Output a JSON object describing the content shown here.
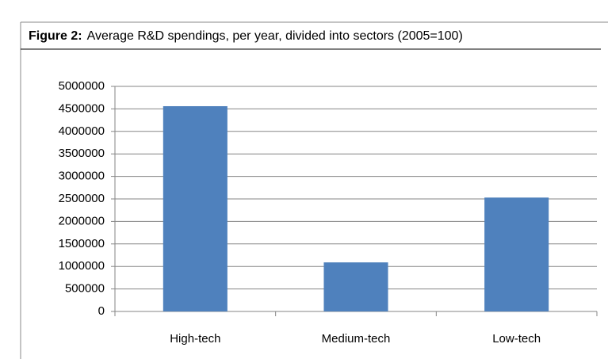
{
  "chart_data": {
    "type": "bar",
    "figure_label": "Figure 2:",
    "title": "Average R&D spendings, per year, divided into sectors (2005=100)",
    "categories": [
      "High-tech",
      "Medium-tech",
      "Low-tech"
    ],
    "values": [
      4560000,
      1090000,
      2530000
    ],
    "color": "#4f81bd",
    "ylim": [
      0,
      5000000
    ],
    "yticks": [
      0,
      500000,
      1000000,
      1500000,
      2000000,
      2500000,
      3000000,
      3500000,
      4000000,
      4500000,
      5000000
    ],
    "grid": true
  }
}
